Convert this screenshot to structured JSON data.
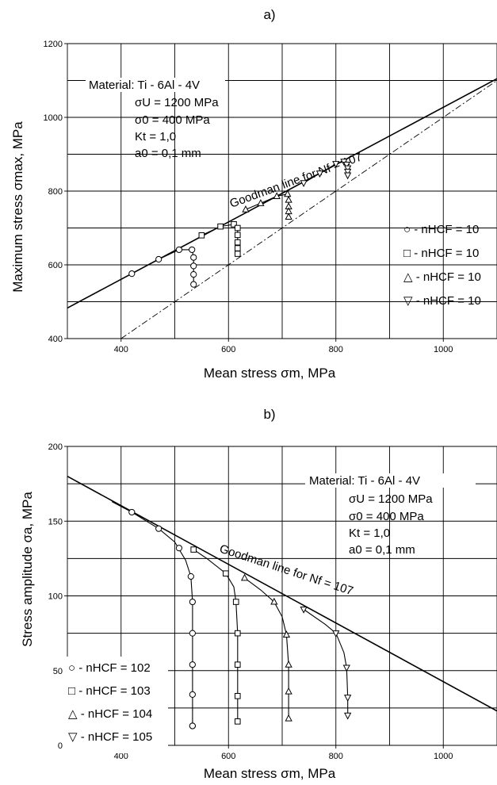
{
  "chart_data": [
    {
      "type": "scatter",
      "panel_label": "a)",
      "xlabel": "Mean stress  σm, MPa",
      "ylabel": "Maximum stress σmax, MPa",
      "xlim": [
        300,
        1100
      ],
      "ylim": [
        400,
        1200
      ],
      "xticks": [
        400,
        600,
        800,
        1000
      ],
      "yticks": [
        400,
        600,
        800,
        1000,
        1200
      ],
      "grid": true,
      "info": {
        "material": "Material: Ti - 6Al - 4V",
        "sigma_u": "σU = 1200 MPa",
        "sigma_0": "σ0 = 400 MPa",
        "kt": "Kt = 1,0",
        "a0": "a0 = 0,1 mm"
      },
      "goodman_label": "Goodman line for Nf = 107",
      "goodman_line": [
        [
          300,
          483
        ],
        [
          1100,
          1105
        ]
      ],
      "reference_line": [
        [
          400,
          400
        ],
        [
          1100,
          1100
        ]
      ],
      "legend_position": "right",
      "series": [
        {
          "name": "nHCF = 10^2",
          "legend": "○ - nHCF = 10",
          "marker": "circle",
          "x": [
            420,
            470,
            508,
            532,
            535,
            535,
            535,
            535
          ],
          "y": [
            576,
            615,
            641,
            641,
            620,
            597,
            574,
            547
          ]
        },
        {
          "name": "nHCF = 10^3",
          "legend": "□ - nHCF = 10",
          "marker": "square",
          "x": [
            550,
            585,
            610,
            617,
            617,
            617,
            617,
            617
          ],
          "y": [
            680,
            704,
            710,
            700,
            681,
            661,
            645,
            630
          ]
        },
        {
          "name": "nHCF = 10^4",
          "legend": "△ - nHCF = 10",
          "marker": "triangle-up",
          "x": [
            632,
            660,
            690,
            710,
            712,
            712,
            712,
            712
          ],
          "y": [
            750,
            767,
            786,
            792,
            776,
            758,
            745,
            730
          ]
        },
        {
          "name": "nHCF = 10^5",
          "legend": "▽ - nHCF = 10",
          "marker": "triangle-down",
          "x": [
            740,
            770,
            800,
            815,
            820,
            822,
            822,
            822
          ],
          "y": [
            822,
            848,
            874,
            880,
            872,
            862,
            853,
            843
          ]
        }
      ]
    },
    {
      "type": "scatter",
      "panel_label": "b)",
      "xlabel": "Mean stress  σm, MPa",
      "ylabel": "Stress amplitude  σa, MPa",
      "xlim": [
        300,
        1100
      ],
      "ylim": [
        0,
        200
      ],
      "xticks": [
        400,
        600,
        800,
        1000
      ],
      "yticks": [
        0,
        50,
        100,
        150,
        200
      ],
      "grid": true,
      "info": {
        "material": "Material: Ti - 6Al - 4V",
        "sigma_u": "σU = 1200 MPa",
        "sigma_0": "σ0 = 400 MPa",
        "kt": "Kt = 1,0",
        "a0": "a0 = 0,1 mm"
      },
      "goodman_label": "Goodman line for Nf = 107",
      "goodman_line": [
        [
          300,
          180
        ],
        [
          1100,
          23
        ]
      ],
      "legend_position": "bottom-left",
      "series": [
        {
          "name": "nHCF = 10^2",
          "legend": "○ - nHCF = 102",
          "marker": "circle",
          "x": [
            420,
            470,
            508,
            530,
            533,
            533,
            533,
            533,
            533,
            533
          ],
          "y": [
            156,
            145,
            132,
            113,
            96,
            75,
            54,
            34,
            13,
            13
          ],
          "curve": [
            [
              383,
              163
            ],
            [
              420,
              156
            ],
            [
              470,
              145
            ],
            [
              500,
              136
            ],
            [
              520,
              124
            ],
            [
              530,
              113
            ],
            [
              533,
              96
            ],
            [
              533,
              13
            ]
          ]
        },
        {
          "name": "nHCF = 10^3",
          "legend": "□ - nHCF = 103",
          "marker": "square",
          "x": [
            535,
            595,
            614,
            617,
            617,
            617,
            617
          ],
          "y": [
            131,
            115,
            96,
            75,
            54,
            33,
            16
          ],
          "curve": [
            [
              535,
              131
            ],
            [
              560,
              125
            ],
            [
              595,
              115
            ],
            [
              610,
              106
            ],
            [
              614,
              96
            ],
            [
              617,
              75
            ],
            [
              617,
              16
            ]
          ]
        },
        {
          "name": "nHCF = 10^4",
          "legend": "△ - nHCF = 104",
          "marker": "triangle-up",
          "x": [
            630,
            685,
            708,
            712,
            712,
            712
          ],
          "y": [
            112,
            96,
            74,
            54,
            36,
            18
          ],
          "curve": [
            [
              630,
              112
            ],
            [
              660,
              104
            ],
            [
              685,
              96
            ],
            [
              700,
              86
            ],
            [
              708,
              74
            ],
            [
              712,
              54
            ],
            [
              712,
              18
            ]
          ]
        },
        {
          "name": "nHCF = 10^5",
          "legend": "▽ - nHCF = 105",
          "marker": "triangle-down",
          "x": [
            740,
            800,
            820,
            822,
            822
          ],
          "y": [
            91,
            75,
            52,
            32,
            20
          ],
          "curve": [
            [
              740,
              91
            ],
            [
              780,
              81
            ],
            [
              800,
              75
            ],
            [
              815,
              62
            ],
            [
              820,
              52
            ],
            [
              822,
              32
            ],
            [
              822,
              20
            ]
          ]
        }
      ]
    }
  ]
}
